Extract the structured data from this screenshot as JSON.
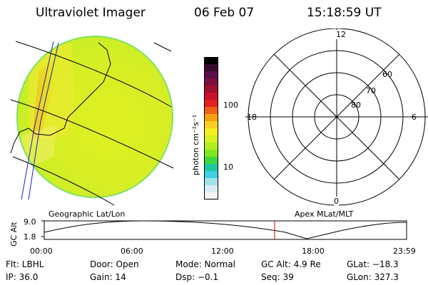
{
  "header": {
    "title": "Ultraviolet Imager",
    "date": "06 Feb 07",
    "time": "15:18:59 UT"
  },
  "colorbar": {
    "unit_label": "photon cm⁻²s⁻¹",
    "tick_labels": [
      "100",
      "10"
    ],
    "colors": [
      "#000000",
      "#3a0a2e",
      "#5a0f4a",
      "#7a1040",
      "#a01030",
      "#c8102a",
      "#e22020",
      "#f06018",
      "#f8a010",
      "#fbd020",
      "#f5f020",
      "#d8f020",
      "#b0ee20",
      "#80e820",
      "#40d840",
      "#20c8a0",
      "#40d0e0",
      "#a0e4ee",
      "#d8eef2",
      "#f4f4f4"
    ]
  },
  "map_left": {
    "label": "Geographic Lat/Lon",
    "colors": [
      "#e6ea1e",
      "#dff020",
      "#c8ee28",
      "#f4f070",
      "#f4c020"
    ]
  },
  "polar": {
    "label": "Apex MLat/MLT",
    "mlt_labels": {
      "top": "12",
      "left": "18",
      "right": "6",
      "bottom": "0"
    },
    "lat_labels": [
      "60",
      "70",
      "80"
    ]
  },
  "altitude_plot": {
    "axis_label": "GC Alt",
    "y_ticks": [
      "9.0",
      "1.8"
    ],
    "x_ticks": [
      "00:00",
      "06:00",
      "12:00",
      "18:00",
      "23:59"
    ],
    "marker_color": "#cc0000"
  },
  "info": {
    "row1": {
      "flt": "Flt: LBHL",
      "door": "Door: Open",
      "mode": "Mode: Normal",
      "gcalt": "GC Alt: 4.9 Re",
      "glat": "GLat: −18.3"
    },
    "row2": {
      "ip": "IP: 36.0",
      "gain": "Gain: 14",
      "dsp": "Dsp:   −0.1",
      "seq": "Seq: 39",
      "glon": "GLon: 327.3"
    }
  }
}
